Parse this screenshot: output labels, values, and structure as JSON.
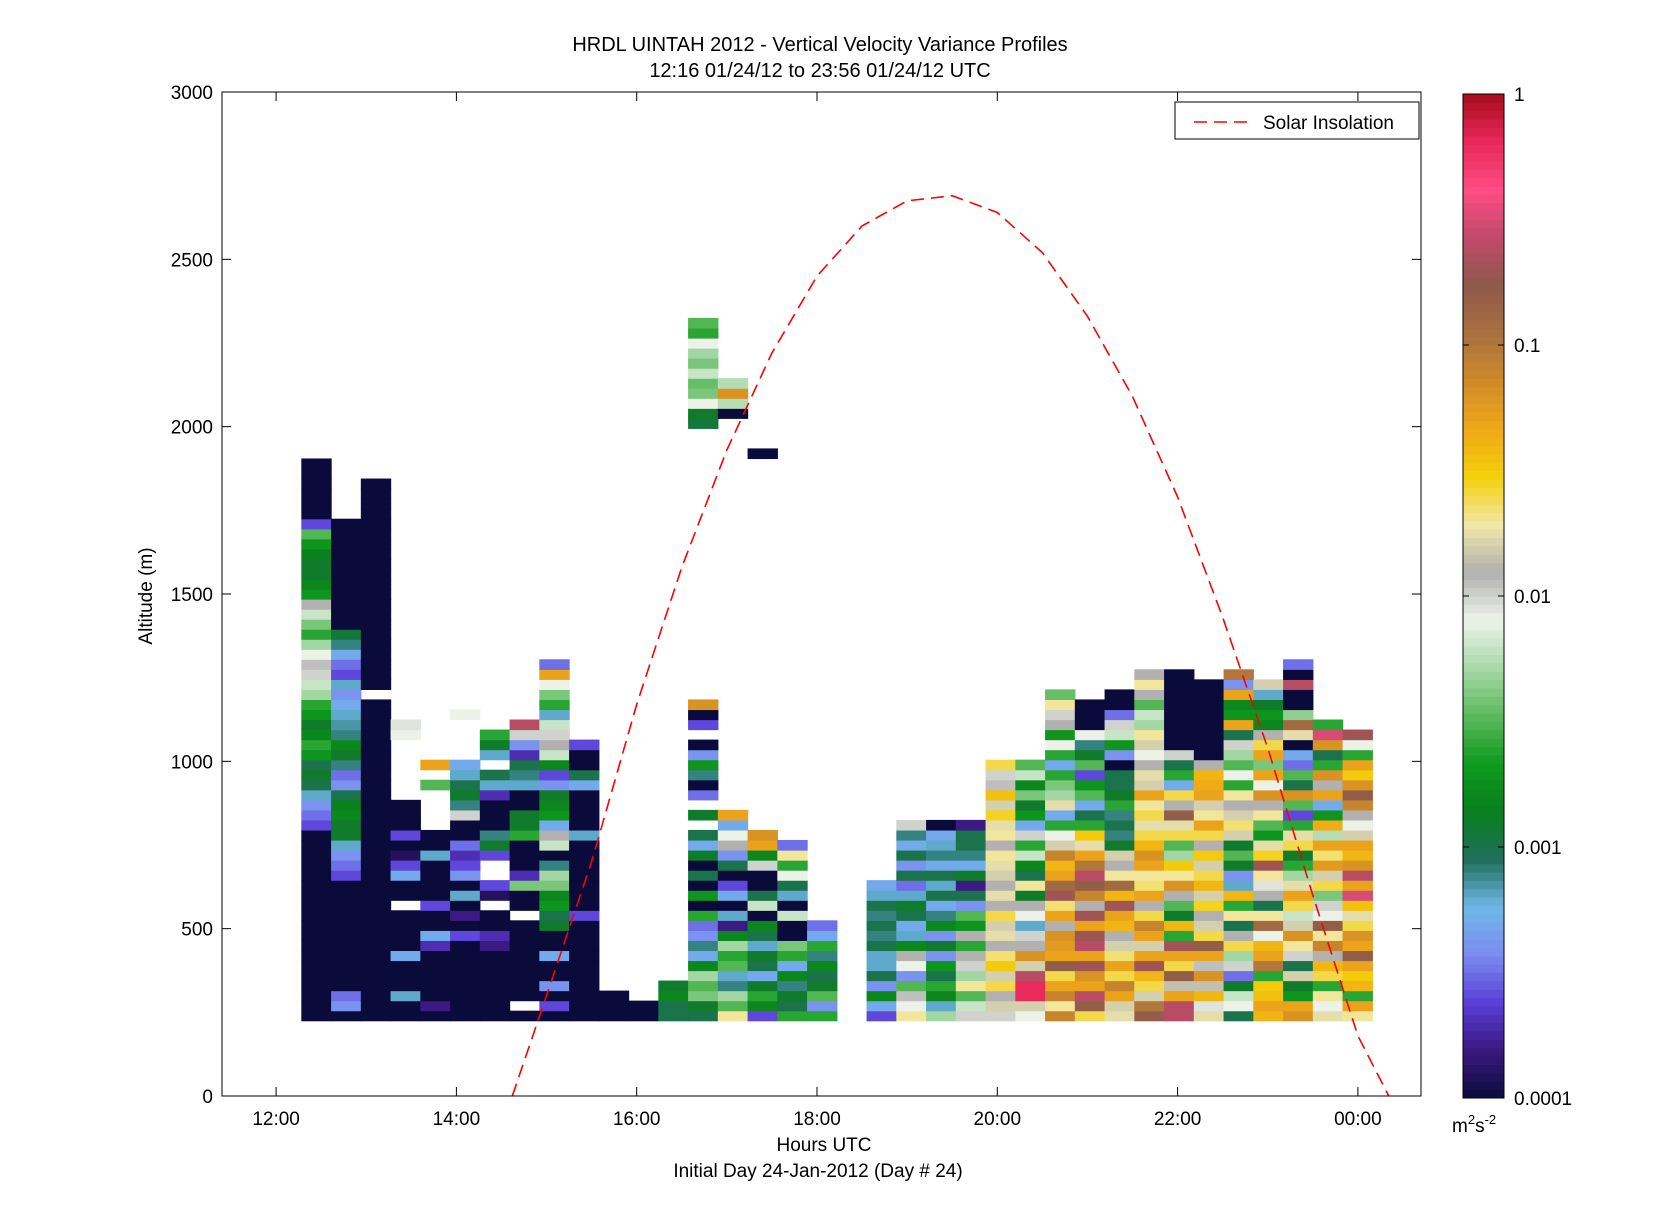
{
  "chart_data": {
    "type": "heatmap",
    "title": "HRDL UINTAH 2012 - Vertical Velocity Variance Profiles",
    "subtitle": "12:16 01/24/12 to 23:56 01/24/12  UTC",
    "xlabel": "Hours UTC",
    "xlabel2": "Initial Day 24-Jan-2012 (Day # 24)",
    "ylabel": "Altitude (m)",
    "xlim": [
      11.4,
      24.7
    ],
    "ylim": [
      0,
      3000
    ],
    "x_ticks": [
      12,
      14,
      16,
      18,
      20,
      22,
      24
    ],
    "x_tick_labels": [
      "12:00",
      "14:00",
      "16:00",
      "18:00",
      "20:00",
      "22:00",
      "00:00"
    ],
    "y_ticks": [
      0,
      500,
      1000,
      1500,
      2000,
      2500,
      3000
    ],
    "y_tick_labels": [
      "0",
      "500",
      "1000",
      "1500",
      "2000",
      "2500",
      "3000"
    ],
    "colorbar": {
      "scale": "log",
      "range": [
        0.0001,
        1
      ],
      "ticks": [
        0.0001,
        0.001,
        0.01,
        0.1,
        1
      ],
      "tick_labels": [
        "0.0001",
        "0.001",
        "0.01",
        "0.1",
        "1"
      ],
      "unit_base": "m",
      "unit_exp1": "2",
      "unit_mid": "s",
      "unit_exp2": "-2",
      "stops": [
        "#0b0b3b",
        "#3a1880",
        "#5b3fd8",
        "#7b8cf0",
        "#6fb8e8",
        "#1f6f5a",
        "#0a7f1e",
        "#0e9a1e",
        "#5cba5c",
        "#a8d8a8",
        "#eef3ea",
        "#b0b0b0",
        "#f2e8a8",
        "#f3cf0a",
        "#f0a818",
        "#cf8a28",
        "#a87040",
        "#8e5a4a",
        "#c04a6a",
        "#ff4c84",
        "#e8285a",
        "#a80b1e"
      ]
    },
    "legend": {
      "position": "top-right",
      "entries": [
        "Solar Insolation"
      ],
      "line_color": "#ff0000",
      "line_style": "dashed"
    },
    "solar_insolation": {
      "x": [
        14.62,
        15.0,
        15.5,
        16.0,
        16.5,
        17.0,
        17.5,
        18.0,
        18.5,
        19.0,
        19.5,
        20.0,
        20.5,
        21.0,
        21.5,
        22.0,
        22.5,
        23.0,
        23.5,
        24.0,
        24.38
      ],
      "y": [
        0,
        300,
        700,
        1170,
        1580,
        1930,
        2220,
        2450,
        2600,
        2675,
        2690,
        2640,
        2520,
        2330,
        2090,
        1790,
        1430,
        1040,
        600,
        180,
        -20
      ]
    },
    "time_bins_h": [
      12.28,
      12.61,
      12.94,
      13.27,
      13.6,
      13.93,
      14.26,
      14.59,
      14.92,
      15.25,
      15.58,
      15.91,
      16.24,
      16.57,
      16.9,
      17.23,
      17.56,
      17.89,
      18.22,
      18.55,
      18.88,
      19.21,
      19.54,
      19.87,
      20.2,
      20.53,
      20.86,
      21.19,
      21.52,
      21.85,
      22.18,
      22.51,
      22.84,
      23.17,
      23.5,
      23.83
    ],
    "altitude_step_m": 30,
    "altitude_start_m": 225,
    "log10_variance_columns": [
      [
        -4,
        -4,
        -4,
        -4,
        -4,
        -4,
        -4,
        -4,
        -4,
        -4,
        -4,
        -4,
        -4,
        -4,
        -4,
        -4,
        -4,
        -4,
        -4,
        -3.6,
        -3.5,
        -3.4,
        -3.2,
        -3.0,
        -2.9,
        -3.0,
        -2.7,
        -2.6,
        -2.8,
        -2.9,
        -2.7,
        -2.6,
        -2.3,
        -2.2,
        -2.0,
        -1.95,
        -2.1,
        -2.3,
        -2.6,
        -2.4,
        -2.2,
        -1.9,
        -2.7,
        -2.8,
        -2.9,
        -2.9,
        -2.85,
        -2.7,
        -2.5,
        -3.6,
        -4,
        -4,
        -4,
        -4,
        -4,
        -4
      ],
      [
        -4,
        -3.4,
        -3.5,
        -4,
        -4,
        -4,
        -4,
        -4,
        -4,
        -4,
        -4,
        -4,
        -4,
        -4,
        -3.6,
        -3.5,
        -3.4,
        -3.2,
        -2.9,
        -2.9,
        -2.8,
        -2.85,
        -3.0,
        -3.4,
        -3.5,
        -3.1,
        -2.9,
        -2.8,
        -3.1,
        -3.15,
        -3.2,
        -3.3,
        -3.4,
        -3.2,
        -3.6,
        -3.5,
        -3.3,
        -3.1,
        -2.95,
        -4,
        -4,
        -4,
        -4,
        -4,
        -4,
        -4,
        -4,
        -4,
        -4,
        -4
      ],
      [
        -4,
        -4,
        -4,
        -4,
        -4,
        -4,
        -4,
        -4,
        -4,
        -4,
        -4,
        -4,
        -4,
        -4,
        -4,
        -4,
        -4,
        -4,
        -4,
        -4,
        -4,
        -4,
        -4,
        -4,
        -4,
        -4,
        -4,
        -4,
        -4,
        -4,
        -4,
        -4,
        null,
        -4,
        -4,
        -4,
        -4,
        -4,
        -4,
        -4,
        -4,
        -4,
        -4,
        -4,
        -4,
        -4,
        -4,
        -4,
        -4,
        -4,
        -4,
        -4,
        -4,
        -4
      ],
      [
        -4,
        -4,
        -3.2,
        -4,
        -4,
        -4,
        -3.3,
        -4,
        -4,
        -4,
        -4,
        null,
        -4,
        -4,
        -3.3,
        -3.6,
        -3.9,
        -4,
        -3.6,
        -4,
        -4,
        -4,
        null,
        null,
        null,
        null,
        null,
        null,
        -2.1,
        -2.05
      ],
      [
        -4,
        -3.8,
        -4,
        -4,
        -4,
        -4,
        -4,
        -3.7,
        -3.3,
        -4,
        -4,
        -3.6,
        -4,
        -4,
        -4,
        -4,
        -3.2,
        -4,
        -4,
        null,
        null,
        null,
        null,
        -2.5,
        null,
        -1.3,
        null,
        null,
        null
      ],
      [
        -4,
        -4,
        -4,
        -4,
        -4,
        -4,
        -4,
        -4,
        -3.6,
        -4,
        -3.8,
        -4,
        -3.2,
        -4,
        -3.4,
        -3.6,
        -3.7,
        -3.5,
        -4,
        -4,
        -2.0,
        -3.1,
        -2.9,
        -3.0,
        -3.2,
        -3.3,
        null,
        null,
        null,
        null,
        -2.1,
        null,
        null,
        null
      ],
      [
        -4,
        -4,
        -4,
        -4,
        -4,
        -4,
        -4,
        -3.8,
        -3.7,
        -4,
        -4,
        null,
        -3.9,
        -3.6,
        null,
        null,
        -3.6,
        -2.9,
        -3.1,
        -4,
        -4,
        -4,
        -3.7,
        -3.2,
        -3.0,
        null,
        -3.2,
        -2.9,
        -2.6,
        null
      ],
      [
        -4,
        null,
        -4,
        -4,
        -4,
        -4,
        -4,
        -4,
        -4,
        -4,
        null,
        -4,
        -4,
        -2.4,
        -3.7,
        -4,
        -4,
        -4,
        -2.6,
        -2.9,
        -2.9,
        -4,
        -4,
        -3.2,
        -3.1,
        -3.0,
        -3.7,
        -3.4,
        -2.0,
        -0.6
      ],
      [
        -4,
        -3.6,
        -4,
        -3.4,
        -4,
        -4,
        -3.3,
        -4,
        -4,
        -2.9,
        -3.0,
        -2.7,
        -2.8,
        -2.4,
        -2.3,
        -3.1,
        -4,
        -2.2,
        -1.9,
        -3.3,
        -2.7,
        -2.8,
        -2.9,
        -3.4,
        -3.6,
        -2.8,
        -2.2,
        -1.9,
        -2.0,
        -2.2,
        -3.2,
        -2.6,
        -2.4,
        -2.1,
        -1.3,
        -3.5
      ],
      [
        -4,
        -4,
        -4,
        -4,
        -4,
        -4,
        -4,
        -4,
        -4,
        -4,
        -3.6,
        -4,
        -4,
        -4,
        -4,
        -4,
        -4,
        -4,
        -3.2,
        -4,
        -4,
        -4,
        -4,
        -3.3,
        -3.0,
        -4,
        -4,
        -3.6
      ],
      [
        -4,
        -4,
        -4
      ],
      [
        -4,
        -4
      ],
      [
        -3.0,
        -3.0,
        -2.8,
        -2.9
      ],
      [
        -3.0,
        -2.9,
        -2.4,
        -2.5,
        -2.3,
        -2.8,
        -3.3,
        -3.1,
        -3.4,
        -3.5,
        -2.6,
        -4,
        -2.7,
        -4,
        -3.0,
        -4,
        -2.9,
        -3.3,
        -3.0,
        null,
        -2.9,
        null,
        -3.5,
        -4,
        -3.1,
        -2.7,
        -3.4,
        -4,
        null,
        -3.6,
        -4,
        -1.2,
        null,
        null,
        null,
        null,
        null,
        null,
        null,
        null,
        null,
        null,
        null,
        null,
        null,
        null,
        null,
        null,
        null,
        null,
        null,
        null,
        null,
        null,
        null,
        null,
        null,
        null,
        null,
        -2.95,
        -2.9,
        -2.1,
        -2.4,
        -2.45,
        -2.2,
        -2.4,
        -2.3,
        -2.1,
        -2.6,
        -2.5
      ],
      [
        -1.7,
        -2.5,
        -2.3,
        -3.1,
        -3.2,
        -2.5,
        -2.6,
        -2.3,
        -2.8,
        -3.8,
        -3.2,
        -4,
        -3.3,
        -3.6,
        -4,
        -3.0,
        -3.4,
        -1.9,
        -2.1,
        -3.3,
        -1.3,
        null,
        null,
        null,
        null,
        null,
        null,
        null,
        null,
        null,
        null,
        null,
        null,
        null,
        null,
        null,
        null,
        null,
        null,
        null,
        null,
        null,
        null,
        null,
        null,
        null,
        null,
        null,
        null,
        null,
        null,
        null,
        null,
        null,
        null,
        null,
        null,
        null,
        null,
        null,
        -4,
        -2.25,
        -1.2,
        -2.25
      ],
      [
        -3.6,
        -2.8,
        -2.6,
        -2.9,
        -3.3,
        -3.0,
        -2.9,
        -3.2,
        -3.0,
        -2.8,
        -4,
        -2.2,
        -3.0,
        -4,
        -4,
        -2.0,
        -2.8,
        -1.3,
        -1.2,
        null,
        null,
        null,
        null,
        null,
        null,
        null,
        null,
        null,
        null,
        null,
        null,
        null,
        null,
        null,
        null,
        null,
        null,
        null,
        null,
        null,
        null,
        null,
        null,
        null,
        null,
        null,
        null,
        null,
        null,
        null,
        null,
        null,
        null,
        null,
        null,
        null,
        -4
      ],
      [
        -2.6,
        -3.0,
        -2.9,
        -3.1,
        -2.8,
        -3.3,
        -2.6,
        -2.4,
        -4,
        -4,
        -2.2,
        -4,
        -3.2,
        -3.0,
        -2.1,
        -2.6,
        -1.7,
        -3.5
      ],
      [
        -2.6,
        -3.4,
        -2.5,
        -2.9,
        -3.0,
        -2.8,
        -3.1,
        -2.6,
        -3.3,
        -3.5
      ],
      [
        null,
        null,
        null,
        null,
        null,
        null,
        null,
        null,
        null,
        null,
        null,
        null,
        null,
        null
      ],
      [
        -3.6,
        -3.3,
        -2.8,
        -3.4,
        -3.0,
        -3.2,
        -3.2,
        -3.0,
        -3.1,
        -3.0,
        -3.1,
        -3.0,
        -3.2,
        -3.3
      ],
      [
        -1.7,
        -2.1,
        -1.95,
        -2.5,
        -3.4,
        -2.1,
        -1.9,
        -2.8,
        -3.2,
        -3.3,
        -3.0,
        -2.9,
        -3.2,
        -3.5,
        -3.0,
        -3.4,
        -3.0,
        -3.3,
        -3.1,
        -2.0
      ],
      [
        -2.3,
        -3.2,
        -2.8,
        -2.6,
        -3.0,
        -2.7,
        -3.4,
        -2.9,
        -3.4,
        -2.8,
        -3.1,
        -3.3,
        -3.0,
        -3.2,
        -3.0,
        -3.3,
        -3.1,
        -3.2,
        -3.3,
        -4
      ],
      [
        -2.0,
        -2.2,
        -2.5,
        -1.7,
        -2.3,
        -2.0,
        -1.9,
        -2.6,
        -1.9,
        -2.7,
        -2.5,
        -3.4,
        -3.0,
        -3.8,
        -2.9,
        -3.3,
        -3.1,
        -3.0,
        -3.0,
        -3.8
      ],
      [
        -2.0,
        -1.8,
        -1.9,
        -1.6,
        -1.8,
        -1.5,
        -1.65,
        -1.9,
        -1.75,
        -1.8,
        -1.6,
        -1.9,
        -1.75,
        -1.9,
        -1.8,
        -1.75,
        -1.7,
        -1.9,
        -1.7,
        -1.75,
        -1.55,
        -1.8,
        -1.45,
        -1.95,
        -2.0,
        -1.6
      ],
      [
        -2.1,
        -1.8,
        -0.2,
        -0.2,
        -0.6,
        -1.8,
        -1.2,
        -1.9,
        -2.0,
        -3.2,
        -2.1,
        -1.9,
        -2.9,
        -1.7,
        -3.0,
        -2.8,
        -2.2,
        -2.6,
        -2.0,
        -3.3,
        -2.7,
        -2.9,
        -2.4,
        -2.8,
        -2.2,
        -2.5
      ],
      [
        -1.1,
        -1.7,
        -1.1,
        -1.3,
        -1.6,
        -0.8,
        -1.3,
        -1.25,
        -1.2,
        -1.9,
        -1.3,
        -1.65,
        -0.7,
        -0.9,
        -1.3,
        -1.4,
        -1.1,
        -1.8,
        -2.1,
        -2.6,
        -3.3,
        -1.75,
        -2.3,
        -2.4,
        -2.6,
        -3.3,
        -2.6,
        -2.1,
        -2.7,
        -1.9,
        -2.0,
        -1.7,
        -2.45
      ],
      [
        -1.6,
        -0.8,
        -0.6,
        -1.3,
        -1.2,
        -0.7,
        -1.3,
        -0.6,
        -0.7,
        -1.3,
        -0.7,
        -1.9,
        -1.1,
        -0.8,
        -0.6,
        -1.0,
        -1.3,
        -1.75,
        -1.5,
        -2.6,
        -3.0,
        -3.3,
        -2.5,
        -2.7,
        -3.6,
        -2.5,
        -2.9,
        -3.1,
        -2.1,
        -4,
        -4,
        -4
      ],
      [
        -1.75,
        -1.8,
        -1.3,
        -1.1,
        -1.6,
        -1.3,
        -1.65,
        -1.8,
        -1.9,
        -1.4,
        -1.3,
        -0.7,
        -1.4,
        -0.9,
        -1.7,
        -1.9,
        -1.8,
        -2.9,
        -3.1,
        -3.0,
        -3.1,
        -2.6,
        -2.9,
        -3.0,
        -3.0,
        -4,
        -3.4,
        -2.7,
        -2.2,
        -2.0,
        -3.5,
        -4,
        -4
      ],
      [
        -0.8,
        -1.0,
        -1.8,
        -1.6,
        -1.4,
        -0.7,
        -1.3,
        -1.8,
        -1.3,
        -1.1,
        -1.6,
        -1.9,
        -1.3,
        -1.65,
        -1.7,
        -1.3,
        -1.2,
        -1.4,
        -1.6,
        -1.75,
        -1.6,
        -1.7,
        -1.3,
        -1.8,
        -1.75,
        -1.9,
        -2.1,
        -1.8,
        -1.7,
        -2.3,
        -2.2,
        -2.5,
        -1.9,
        -1.7,
        -1.9
      ],
      [
        -0.6,
        -0.6,
        -1.3,
        -1.85,
        -0.8,
        -1.6,
        -1.3,
        -0.7,
        -2.6,
        -1.4,
        -2.9,
        -2.5,
        -1.9,
        -1.2,
        -1.7,
        -1.5,
        -2.3,
        -2.5,
        -1.6,
        -1.75,
        -0.8,
        -1.9,
        -1.6,
        -3.3,
        -2.6,
        -3.0,
        -2.0,
        -4,
        -4,
        -4,
        -4,
        -4,
        -4,
        -4,
        -4
      ],
      [
        -1.75,
        -2.05,
        -1.4,
        -1.85,
        -1.2,
        -1.95,
        -1.3,
        -0.8,
        -1.6,
        -1.8,
        -1.9,
        -1.55,
        -1.8,
        -1.4,
        -1.6,
        -1.8,
        -1.5,
        -1.9,
        -1.6,
        -1.3,
        -1.7,
        -1.8,
        -1.3,
        -1.35,
        -1.4,
        -1.9,
        -4,
        -4,
        -4,
        -4,
        -4,
        -4,
        -4,
        -4
      ],
      [
        -3.0,
        -2.1,
        -2.2,
        -2.9,
        -3.5,
        -2.0,
        -2.3,
        -1.6,
        -1.9,
        -3.0,
        -1.7,
        -2.6,
        -1.4,
        -3.2,
        -3.4,
        -2.9,
        -2.5,
        -2.9,
        -1.8,
        -1.65,
        -1.8,
        -1.9,
        -1.7,
        -2.6,
        -2.1,
        -2.5,
        -2.3,
        -2.0,
        -3.0,
        -1.3,
        -2.7,
        -2.8,
        -1.3,
        -3.4,
        -1.0
      ],
      [
        -1.4,
        -1.3,
        -1.45,
        -1.5,
        -2.6,
        -1.0,
        -1.3,
        -1.4,
        -2.1,
        -0.9,
        -1.7,
        -3.0,
        -1.9,
        -2.05,
        -1.7,
        -0.7,
        -1.55,
        -1.75,
        -2.7,
        -2.5,
        -1.7,
        -1.9,
        -1.2,
        -2.1,
        -1.3,
        -2.4,
        -1.3,
        -1.6,
        -1.9,
        -2.8,
        -2.7,
        -2.9,
        -3.2,
        -1.8
      ],
      [
        -1.2,
        -1.3,
        -2.7,
        -2.9,
        -1.8,
        -3.0,
        -2.0,
        -1.7,
        -1.2,
        -1.8,
        -2.2,
        -1.6,
        -1.3,
        -1.75,
        -2.3,
        -2.6,
        -2.9,
        -1.6,
        -1.75,
        -2.6,
        -3.6,
        -2.5,
        -1.2,
        -3.0,
        -2.5,
        -3.5,
        -3.3,
        -4,
        -1.75,
        -0.9,
        -2.35,
        -4,
        -4,
        -0.6,
        -4,
        -3.5
      ],
      [
        -1.75,
        -2.1,
        -1.7,
        -2.6,
        -1.6,
        -1.4,
        -1.9,
        -1.1,
        -1.7,
        -0.8,
        -2.1,
        -2.0,
        -2.4,
        -1.6,
        -1.8,
        -1.25,
        -1.65,
        -1.3,
        -2.25,
        -1.35,
        -2.7,
        -3.3,
        -1.3,
        -1.9,
        -1.2,
        -2.6,
        -3.0,
        -1.2,
        -0.5,
        -2.6
      ],
      [
        -1.7,
        -1.3,
        -2.6,
        -1.4,
        -1.5,
        -1.3,
        -0.8,
        -1.3,
        -1.2,
        -1.6,
        -1.75,
        -1.45,
        -0.5,
        -1.3,
        -0.6,
        -1.2,
        -1.4,
        -1.3,
        -1.8,
        -2.1,
        -1.9,
        -1.1,
        -0.8,
        -1.2,
        -1.5,
        -1.3,
        -2.6,
        -2.1,
        -0.7
      ]
    ]
  }
}
